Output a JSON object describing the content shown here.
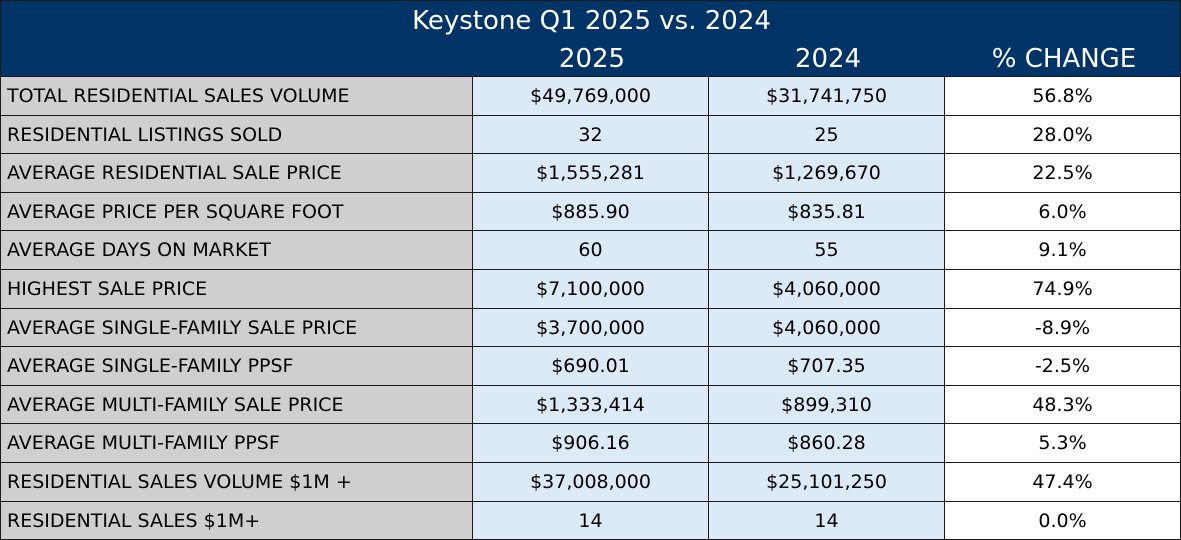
{
  "chart_data": {
    "type": "table",
    "title": "Keystone Q1 2025 vs. 2024",
    "columns": [
      "2025",
      "2024",
      "% CHANGE"
    ],
    "rows": [
      {
        "label": "TOTAL RESIDENTIAL SALES VOLUME",
        "v2025": "$49,769,000",
        "v2024": "$31,741,750",
        "change": "56.8%"
      },
      {
        "label": "RESIDENTIAL LISTINGS SOLD",
        "v2025": "32",
        "v2024": "25",
        "change": "28.0%"
      },
      {
        "label": "AVERAGE RESIDENTIAL SALE PRICE",
        "v2025": "$1,555,281",
        "v2024": "$1,269,670",
        "change": "22.5%"
      },
      {
        "label": "AVERAGE PRICE PER SQUARE FOOT",
        "v2025": "$885.90",
        "v2024": "$835.81",
        "change": "6.0%"
      },
      {
        "label": "AVERAGE DAYS ON MARKET",
        "v2025": "60",
        "v2024": "55",
        "change": "9.1%"
      },
      {
        "label": "HIGHEST SALE PRICE",
        "v2025": "$7,100,000",
        "v2024": "$4,060,000",
        "change": "74.9%"
      },
      {
        "label": "AVERAGE SINGLE-FAMILY SALE PRICE",
        "v2025": "$3,700,000",
        "v2024": "$4,060,000",
        "change": "-8.9%"
      },
      {
        "label": "AVERAGE SINGLE-FAMILY PPSF",
        "v2025": "$690.01",
        "v2024": "$707.35",
        "change": "-2.5%"
      },
      {
        "label": "AVERAGE MULTI-FAMILY SALE PRICE",
        "v2025": "$1,333,414",
        "v2024": "$899,310",
        "change": "48.3%"
      },
      {
        "label": "AVERAGE MULTI-FAMILY PPSF",
        "v2025": "$906.16",
        "v2024": "$860.28",
        "change": "5.3%"
      },
      {
        "label": "RESIDENTIAL SALES VOLUME $1M +",
        "v2025": "$37,008,000",
        "v2024": "$25,101,250",
        "change": "47.4%"
      },
      {
        "label": "RESIDENTIAL SALES $1M+",
        "v2025": "14",
        "v2024": "14",
        "change": "0.0%"
      }
    ]
  },
  "colors": {
    "header_bg": "#003366",
    "label_bg": "#cfcfcf",
    "value_bg": "#dce9f7",
    "change_bg": "#ffffff"
  }
}
